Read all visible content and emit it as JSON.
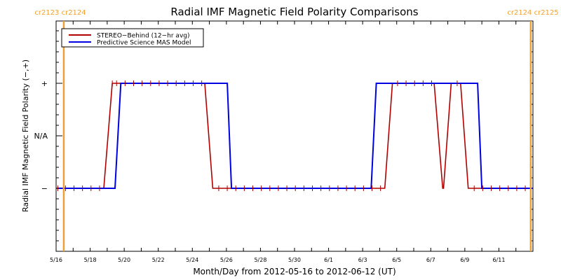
{
  "chart_data": {
    "type": "line",
    "title": "Radial IMF Magnetic Field Polarity Comparisons",
    "xlabel": "Month/Day from 2012-05-16 to 2012-06-12 (UT)",
    "ylabel": "Radial IMF Magnetic Field Polarity (−,+)",
    "x_unit": "days since 2012-05-16 00:00 UT",
    "xlim": [
      0,
      28
    ],
    "ylim": [
      -2,
      2
    ],
    "x_ticks": [
      {
        "value": 0,
        "label": "5/16"
      },
      {
        "value": 2,
        "label": "5/18"
      },
      {
        "value": 4,
        "label": "5/20"
      },
      {
        "value": 6,
        "label": "5/22"
      },
      {
        "value": 8,
        "label": "5/24"
      },
      {
        "value": 10,
        "label": "5/26"
      },
      {
        "value": 12,
        "label": "5/28"
      },
      {
        "value": 14,
        "label": "5/30"
      },
      {
        "value": 16,
        "label": "6/1"
      },
      {
        "value": 18,
        "label": "6/3"
      },
      {
        "value": 20,
        "label": "6/5"
      },
      {
        "value": 22,
        "label": "6/7"
      },
      {
        "value": 24,
        "label": "6/9"
      },
      {
        "value": 26,
        "label": "6/11"
      }
    ],
    "y_ticks": [
      {
        "value": 1,
        "label": "+"
      },
      {
        "value": 0,
        "label": "N/A"
      },
      {
        "value": -1,
        "label": "−"
      }
    ],
    "carrington_markers": [
      {
        "x": 0.45,
        "label": "cr2123 cr2124"
      },
      {
        "x": 27.87,
        "label": "cr2124 cr2125"
      }
    ],
    "marker_color": "#f0a030",
    "legend": {
      "placement": "top-left",
      "entries": [
        {
          "label": "STEREO−Behind (12−hr avg)",
          "color": "#b00000"
        },
        {
          "label": "Predictive Science MAS Model",
          "color": "#0000e0"
        }
      ]
    },
    "series": [
      {
        "name": "STEREO-Behind (12-hr avg)",
        "color": "#b00000",
        "points": [
          [
            0.1,
            -1
          ],
          [
            2.8,
            -1
          ],
          [
            3.3,
            1
          ],
          [
            8.73,
            1
          ],
          [
            9.2,
            -1
          ],
          [
            19.3,
            -1
          ],
          [
            19.75,
            1
          ],
          [
            22.2,
            1
          ],
          [
            22.7,
            -1
          ],
          [
            22.75,
            -1
          ],
          [
            23.2,
            1
          ],
          [
            23.75,
            1
          ],
          [
            24.2,
            -1
          ],
          [
            28,
            -1
          ]
        ],
        "sample_markers": [
          0.1,
          0.55,
          1.05,
          1.55,
          2.05,
          2.55,
          3.05,
          3.3,
          3.55,
          4.05,
          4.55,
          5.05,
          5.55,
          6.05,
          6.55,
          7.05,
          7.55,
          8.05,
          8.55,
          9.05,
          9.55,
          10.05,
          10.55,
          11.05,
          11.55,
          12.05,
          12.55,
          13.05,
          13.55,
          14.05,
          14.55,
          15.05,
          15.55,
          16.05,
          16.55,
          17.05,
          17.55,
          18.05,
          18.55,
          19.05,
          19.55,
          20.05,
          20.55,
          21.05,
          21.55,
          22.05,
          22.55,
          23.05,
          23.55,
          24.05,
          24.55,
          25.05,
          25.55,
          26.05,
          26.55,
          27.05,
          27.55
        ]
      },
      {
        "name": "Predictive Science MAS Model",
        "color": "#0000e0",
        "points": [
          [
            0.05,
            -1
          ],
          [
            3.46,
            -1
          ],
          [
            3.8,
            1
          ],
          [
            10.05,
            1
          ],
          [
            10.3,
            -1
          ],
          [
            18.5,
            -1
          ],
          [
            18.8,
            1
          ],
          [
            24.75,
            1
          ],
          [
            25.0,
            -1
          ],
          [
            28,
            -1
          ]
        ]
      }
    ]
  }
}
